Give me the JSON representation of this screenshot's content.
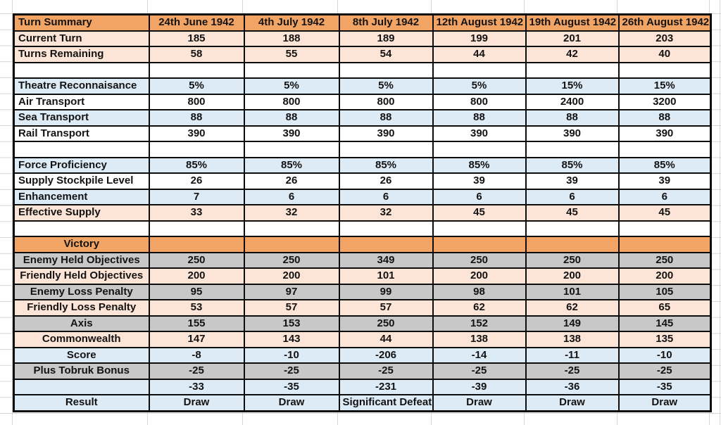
{
  "table": {
    "corner_label": "Turn Summary",
    "date_columns": [
      "24th June 1942",
      "4th July 1942",
      "8th July 1942",
      "12th August 1942",
      "19th August 1942",
      "26th August 1942"
    ],
    "rows": [
      {
        "label": "Current Turn",
        "bg": "peach",
        "align": "left",
        "values": [
          "185",
          "188",
          "189",
          "199",
          "201",
          "203"
        ]
      },
      {
        "label": "Turns Remaining",
        "bg": "peach",
        "align": "left",
        "values": [
          "58",
          "55",
          "54",
          "44",
          "42",
          "40"
        ]
      },
      {
        "label": "",
        "bg": "white",
        "align": "left",
        "values": [
          "",
          "",
          "",
          "",
          "",
          ""
        ]
      },
      {
        "label": "Theatre Reconnaisance",
        "bg": "blue",
        "align": "left",
        "values": [
          "5%",
          "5%",
          "5%",
          "5%",
          "15%",
          "15%"
        ]
      },
      {
        "label": "Air Transport",
        "bg": "white",
        "align": "left",
        "values": [
          "800",
          "800",
          "800",
          "800",
          "2400",
          "3200"
        ]
      },
      {
        "label": "Sea Transport",
        "bg": "blue",
        "align": "left",
        "values": [
          "88",
          "88",
          "88",
          "88",
          "88",
          "88"
        ]
      },
      {
        "label": "Rail Transport",
        "bg": "white",
        "align": "left",
        "values": [
          "390",
          "390",
          "390",
          "390",
          "390",
          "390"
        ]
      },
      {
        "label": "",
        "bg": "white",
        "align": "left",
        "values": [
          "",
          "",
          "",
          "",
          "",
          ""
        ]
      },
      {
        "label": "Force Proficiency",
        "bg": "blue",
        "align": "left",
        "values": [
          "85%",
          "85%",
          "85%",
          "85%",
          "85%",
          "85%"
        ]
      },
      {
        "label": "Supply Stockpile Level",
        "bg": "white",
        "align": "left",
        "values": [
          "26",
          "26",
          "26",
          "39",
          "39",
          "39"
        ]
      },
      {
        "label": "Enhancement",
        "bg": "blue",
        "align": "left",
        "values": [
          "7",
          "6",
          "6",
          "6",
          "6",
          "6"
        ]
      },
      {
        "label": "Effective Supply",
        "bg": "peach",
        "align": "left",
        "values": [
          "33",
          "32",
          "32",
          "45",
          "45",
          "45"
        ]
      },
      {
        "label": "",
        "bg": "white",
        "align": "left",
        "values": [
          "",
          "",
          "",
          "",
          "",
          ""
        ]
      },
      {
        "label": "Victory",
        "bg": "orange",
        "align": "center",
        "values": [
          "",
          "",
          "",
          "",
          "",
          ""
        ]
      },
      {
        "label": "Enemy Held Objectives",
        "bg": "gray",
        "align": "center",
        "values": [
          "250",
          "250",
          "349",
          "250",
          "250",
          "250"
        ]
      },
      {
        "label": "Friendly Held Objectives",
        "bg": "peach",
        "align": "center",
        "values": [
          "200",
          "200",
          "101",
          "200",
          "200",
          "200"
        ]
      },
      {
        "label": "Enemy Loss Penalty",
        "bg": "gray",
        "align": "center",
        "values": [
          "95",
          "97",
          "99",
          "98",
          "101",
          "105"
        ]
      },
      {
        "label": "Friendly Loss Penalty",
        "bg": "peach",
        "align": "center",
        "values": [
          "53",
          "57",
          "57",
          "62",
          "62",
          "65"
        ]
      },
      {
        "label": "Axis",
        "bg": "gray",
        "align": "center",
        "values": [
          "155",
          "153",
          "250",
          "152",
          "149",
          "145"
        ]
      },
      {
        "label": "Commonwealth",
        "bg": "peach",
        "align": "center",
        "values": [
          "147",
          "143",
          "44",
          "138",
          "138",
          "135"
        ]
      },
      {
        "label": "Score",
        "bg": "blue",
        "align": "center",
        "values": [
          "-8",
          "-10",
          "-206",
          "-14",
          "-11",
          "-10"
        ]
      },
      {
        "label": "Plus Tobruk Bonus",
        "bg": "gray",
        "align": "center",
        "values": [
          "-25",
          "-25",
          "-25",
          "-25",
          "-25",
          "-25"
        ]
      },
      {
        "label": "",
        "bg": "blue",
        "align": "center",
        "values": [
          "-33",
          "-35",
          "-231",
          "-39",
          "-36",
          "-35"
        ]
      },
      {
        "label": "Result",
        "bg": "blue",
        "align": "center",
        "values": [
          "Draw",
          "Draw",
          "Significant Defeat",
          "Draw",
          "Draw",
          "Draw"
        ]
      }
    ]
  },
  "colors": {
    "header_orange": "#F2A465",
    "row_peach": "#FCE4D6",
    "row_blue": "#DDEBF7",
    "row_gray": "#C8C8C8",
    "cell_border": "#0d0d0d",
    "sheet_gridline": "#d5d5d5"
  }
}
